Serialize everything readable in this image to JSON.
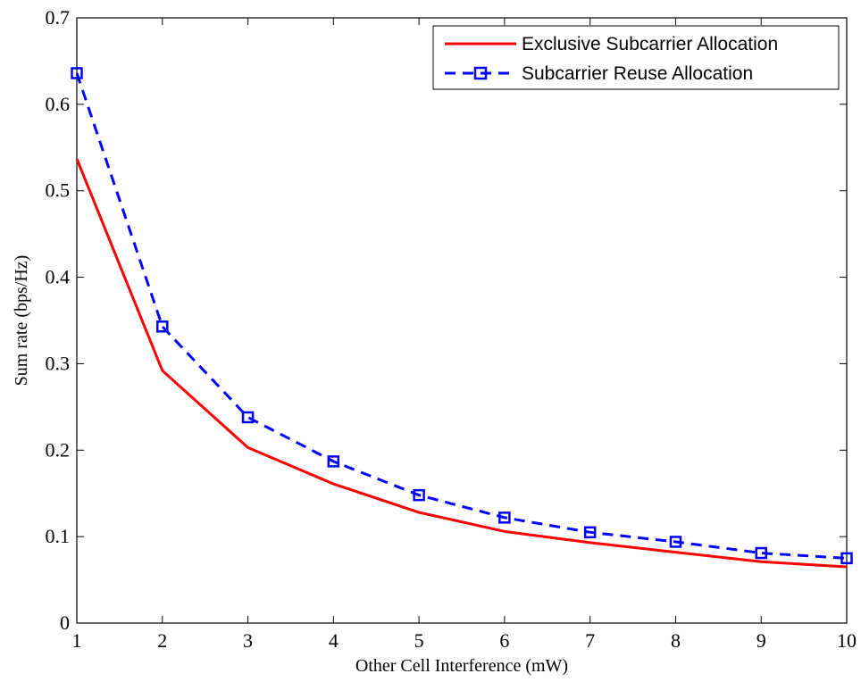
{
  "chart_data": {
    "type": "line",
    "title": "",
    "xlabel": "Other Cell Interference (mW)",
    "ylabel": "Sum rate (bps/Hz)",
    "xlim": [
      1,
      10
    ],
    "ylim": [
      0,
      0.7
    ],
    "xticks": [
      1,
      2,
      3,
      4,
      5,
      6,
      7,
      8,
      9,
      10
    ],
    "yticks": [
      0,
      0.1,
      0.2,
      0.3,
      0.4,
      0.5,
      0.6,
      0.7
    ],
    "ytick_labels": [
      "0",
      "0.1",
      "0.2",
      "0.3",
      "0.4",
      "0.5",
      "0.6",
      "0.7"
    ],
    "grid": false,
    "legend_position": "top-right",
    "series": [
      {
        "name": "Exclusive Subcarrier Allocation",
        "color": "#ff0000",
        "line_style": "solid",
        "marker": "none",
        "x": [
          1,
          2,
          3,
          4,
          5,
          6,
          7,
          8,
          9,
          10
        ],
        "values": [
          0.537,
          0.292,
          0.203,
          0.161,
          0.128,
          0.106,
          0.093,
          0.082,
          0.071,
          0.065
        ]
      },
      {
        "name": "Subcarrier Reuse Allocation",
        "color": "#0000ff",
        "line_style": "dashed",
        "marker": "square",
        "x": [
          1,
          2,
          3,
          4,
          5,
          6,
          7,
          8,
          9,
          10
        ],
        "values": [
          0.636,
          0.343,
          0.238,
          0.187,
          0.148,
          0.122,
          0.105,
          0.094,
          0.081,
          0.075
        ]
      }
    ]
  }
}
